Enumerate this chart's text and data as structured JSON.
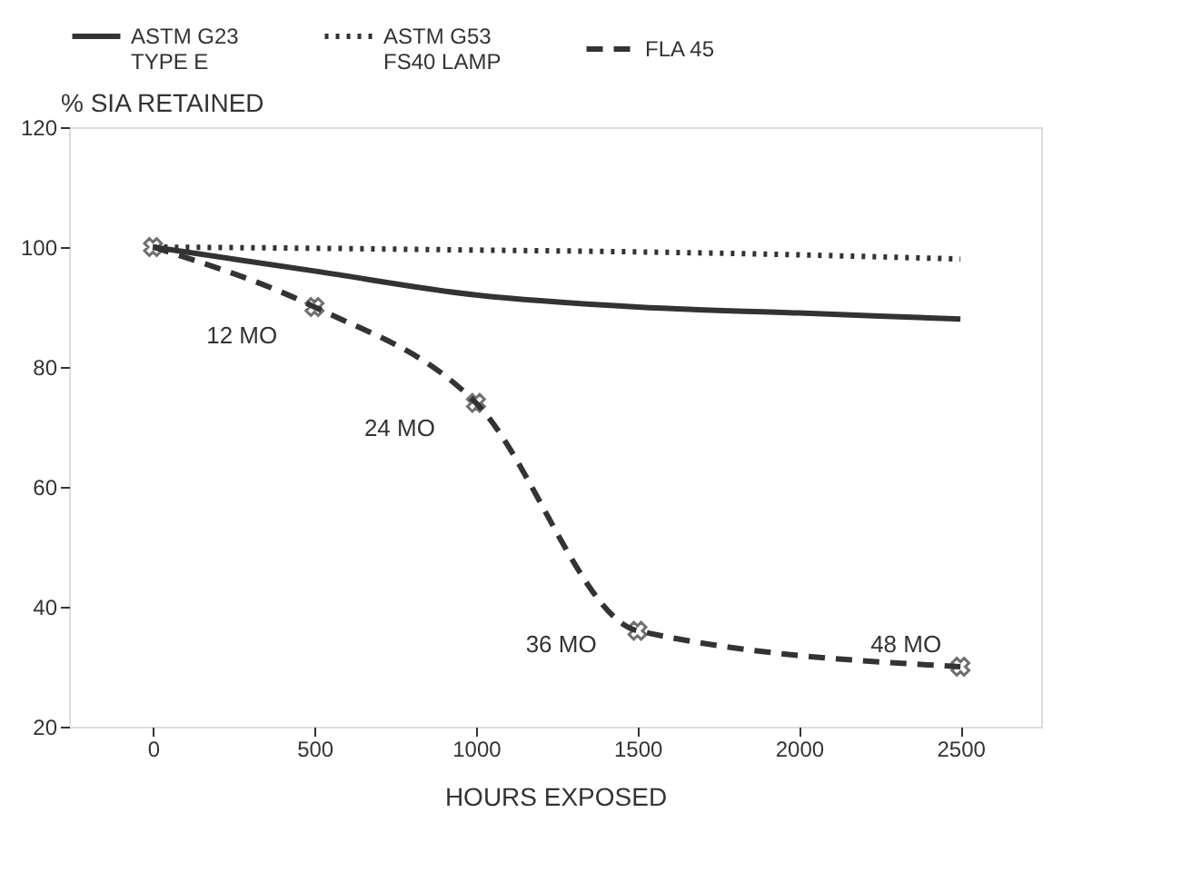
{
  "chart_data": {
    "type": "line",
    "xlabel": "HOURS EXPOSED",
    "ylabel": "% SIA RETAINED",
    "x": [
      0,
      500,
      1000,
      1500,
      2000,
      2500
    ],
    "series": [
      {
        "name": "ASTM G23\nTYPE E",
        "color": "#333333",
        "line_style": "solid",
        "marker": "none",
        "values": [
          100,
          96,
          92,
          90,
          89,
          88
        ]
      },
      {
        "name": "ASTM G53\nFS40 LAMP",
        "color": "#333333",
        "line_style": "dotted",
        "marker": "none",
        "values": [
          100,
          99.8,
          99.5,
          99.2,
          98.7,
          98
        ]
      },
      {
        "name": "FLA 45",
        "color": "#333333",
        "line_style": "dashed",
        "marker": "cross",
        "x": [
          0,
          500,
          1000,
          1500,
          2500
        ],
        "values": [
          100,
          90,
          74,
          36,
          30
        ]
      }
    ],
    "annotations": [
      {
        "text": "12 MO",
        "x": 500,
        "y": 90
      },
      {
        "text": "24 MO",
        "x": 1000,
        "y": 74
      },
      {
        "text": "36 MO",
        "x": 1500,
        "y": 36
      },
      {
        "text": "48 MO",
        "x": 2500,
        "y": 30
      }
    ],
    "xlim": [
      -260,
      2750
    ],
    "xticks": [
      0,
      500,
      1000,
      1500,
      2000,
      2500
    ],
    "ylim": [
      20,
      120
    ],
    "yticks": [
      20,
      40,
      60,
      80,
      100,
      120
    ],
    "grid": false,
    "legend": "top"
  }
}
